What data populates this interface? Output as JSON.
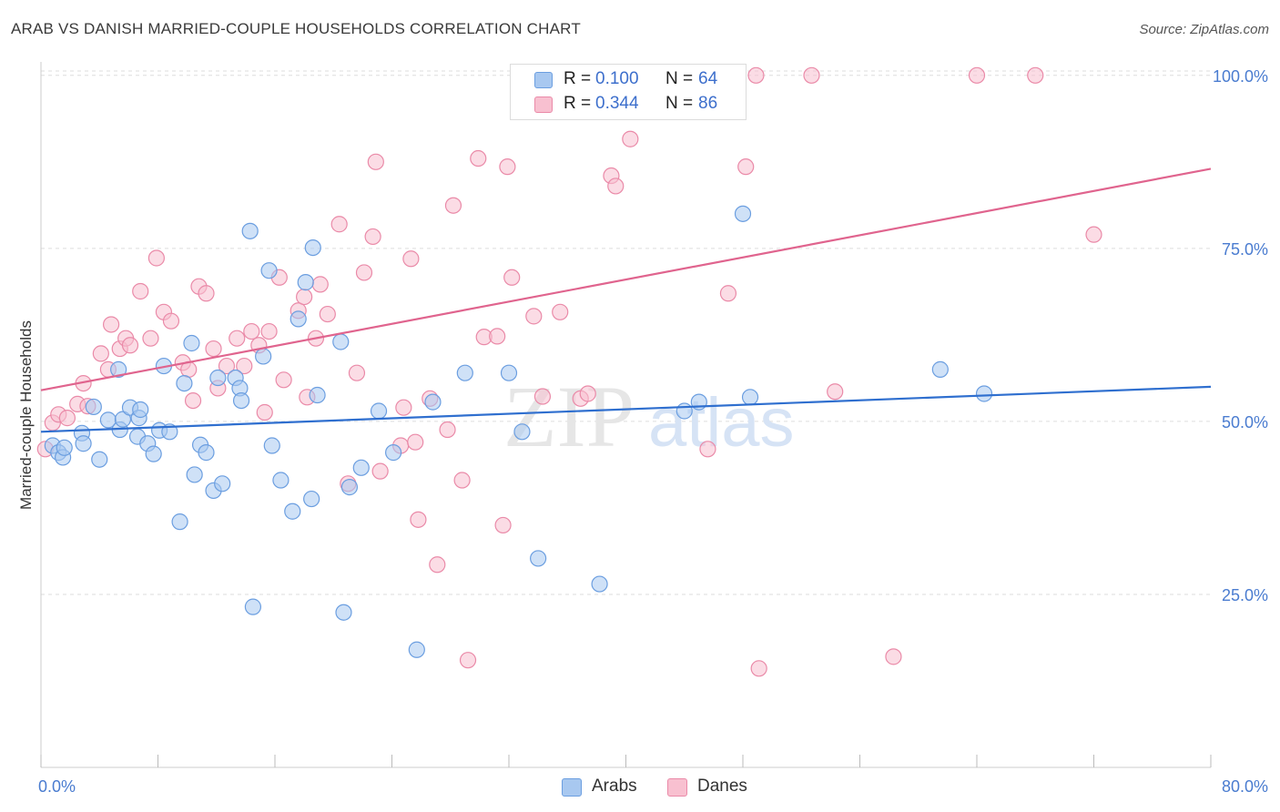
{
  "title": "ARAB VS DANISH MARRIED-COUPLE HOUSEHOLDS CORRELATION CHART",
  "source": "Source: ZipAtlas.com",
  "watermark": {
    "zip": "ZIP",
    "atlas": "atlas"
  },
  "legend_top": {
    "rows": [
      {
        "r_label": "R =",
        "r_value": "0.100",
        "n_label": "N =",
        "n_value": "64",
        "color": "#a8c8f0",
        "border": "#6b9ee0"
      },
      {
        "r_label": "R =",
        "r_value": "0.344",
        "n_label": "N =",
        "n_value": "86",
        "color": "#f8c0d0",
        "border": "#ea8aa8"
      }
    ]
  },
  "legend_bottom": {
    "items": [
      {
        "label": "Arabs",
        "color": "#a8c8f0",
        "border": "#6b9ee0"
      },
      {
        "label": "Danes",
        "color": "#f8c0d0",
        "border": "#ea8aa8"
      }
    ]
  },
  "chart_data": {
    "type": "scatter",
    "title": "ARAB VS DANISH MARRIED-COUPLE HOUSEHOLDS CORRELATION CHART",
    "xlabel": "",
    "ylabel": "Married-couple Households",
    "xlim": [
      0,
      80
    ],
    "ylim": [
      0,
      103
    ],
    "x_tick_labels": [
      "0.0%",
      "80.0%"
    ],
    "y_ticks": [
      25,
      50,
      75,
      100
    ],
    "y_tick_labels": [
      "25.0%",
      "50.0%",
      "75.0%",
      "100.0%"
    ],
    "grid": true,
    "legend_position": "top-center",
    "series": [
      {
        "name": "Arabs",
        "color": "#6b9ee0",
        "fill": "#a8c8f0",
        "trend_color": "#2f6fcf",
        "trend": {
          "x": [
            0,
            80
          ],
          "y": [
            48.5,
            55.0
          ]
        },
        "points": [
          [
            0.8,
            46.5
          ],
          [
            1.2,
            45.5
          ],
          [
            1.5,
            44.8
          ],
          [
            2.8,
            48.3
          ],
          [
            2.9,
            46.8
          ],
          [
            3.6,
            52.1
          ],
          [
            4.0,
            44.5
          ],
          [
            4.6,
            50.2
          ],
          [
            5.3,
            57.5
          ],
          [
            5.4,
            48.8
          ],
          [
            5.6,
            50.3
          ],
          [
            6.1,
            52.0
          ],
          [
            6.6,
            47.8
          ],
          [
            6.7,
            50.5
          ],
          [
            6.8,
            51.7
          ],
          [
            7.3,
            46.8
          ],
          [
            7.7,
            45.3
          ],
          [
            8.1,
            48.7
          ],
          [
            8.4,
            58.0
          ],
          [
            8.8,
            48.5
          ],
          [
            9.5,
            35.5
          ],
          [
            9.8,
            55.5
          ],
          [
            10.3,
            61.3
          ],
          [
            10.5,
            42.3
          ],
          [
            10.9,
            46.6
          ],
          [
            11.3,
            45.5
          ],
          [
            11.8,
            40.0
          ],
          [
            12.1,
            56.3
          ],
          [
            12.4,
            41.0
          ],
          [
            13.3,
            56.3
          ],
          [
            13.6,
            54.8
          ],
          [
            13.7,
            53.0
          ],
          [
            14.3,
            77.5
          ],
          [
            14.5,
            23.2
          ],
          [
            15.2,
            59.4
          ],
          [
            15.6,
            71.8
          ],
          [
            15.8,
            46.5
          ],
          [
            16.4,
            41.5
          ],
          [
            17.2,
            37.0
          ],
          [
            17.6,
            64.8
          ],
          [
            18.1,
            70.1
          ],
          [
            18.5,
            38.8
          ],
          [
            18.6,
            75.1
          ],
          [
            18.9,
            53.8
          ],
          [
            20.5,
            61.5
          ],
          [
            20.7,
            22.4
          ],
          [
            21.1,
            40.5
          ],
          [
            21.9,
            43.3
          ],
          [
            23.1,
            51.5
          ],
          [
            24.1,
            45.5
          ],
          [
            25.7,
            17.0
          ],
          [
            26.8,
            52.8
          ],
          [
            29.0,
            57.0
          ],
          [
            32.0,
            57.0
          ],
          [
            32.9,
            48.5
          ],
          [
            34.0,
            30.2
          ],
          [
            38.2,
            26.5
          ],
          [
            44.0,
            51.5
          ],
          [
            45.0,
            52.8
          ],
          [
            48.0,
            80.0
          ],
          [
            48.5,
            53.5
          ],
          [
            61.5,
            57.5
          ],
          [
            64.5,
            54.0
          ],
          [
            1.6,
            46.2
          ]
        ]
      },
      {
        "name": "Danes",
        "color": "#ea8aa8",
        "fill": "#f8c0d0",
        "trend_color": "#e0648e",
        "trend": {
          "x": [
            0,
            80
          ],
          "y": [
            54.5,
            86.5
          ]
        },
        "points": [
          [
            0.3,
            46.0
          ],
          [
            0.8,
            49.8
          ],
          [
            1.2,
            51.0
          ],
          [
            1.8,
            50.5
          ],
          [
            2.5,
            52.5
          ],
          [
            2.9,
            55.5
          ],
          [
            3.2,
            52.2
          ],
          [
            4.1,
            59.8
          ],
          [
            4.6,
            57.5
          ],
          [
            4.8,
            64.0
          ],
          [
            5.4,
            60.5
          ],
          [
            5.8,
            62.0
          ],
          [
            6.1,
            61.0
          ],
          [
            6.8,
            68.8
          ],
          [
            7.5,
            62.0
          ],
          [
            7.9,
            73.6
          ],
          [
            8.4,
            65.8
          ],
          [
            8.9,
            64.5
          ],
          [
            9.7,
            58.5
          ],
          [
            10.1,
            57.5
          ],
          [
            10.4,
            53.0
          ],
          [
            10.8,
            69.5
          ],
          [
            11.3,
            68.5
          ],
          [
            11.8,
            60.5
          ],
          [
            12.1,
            54.8
          ],
          [
            12.7,
            58.0
          ],
          [
            13.4,
            62.0
          ],
          [
            13.9,
            58.0
          ],
          [
            14.4,
            63.0
          ],
          [
            14.9,
            61.0
          ],
          [
            15.3,
            51.3
          ],
          [
            15.6,
            63.0
          ],
          [
            16.3,
            70.8
          ],
          [
            16.6,
            56.0
          ],
          [
            17.6,
            66.0
          ],
          [
            18.0,
            68.0
          ],
          [
            18.2,
            53.5
          ],
          [
            18.8,
            62.0
          ],
          [
            19.1,
            69.8
          ],
          [
            19.6,
            65.5
          ],
          [
            20.4,
            78.5
          ],
          [
            21.0,
            41.0
          ],
          [
            21.6,
            57.0
          ],
          [
            22.1,
            71.5
          ],
          [
            22.7,
            76.7
          ],
          [
            22.9,
            87.5
          ],
          [
            23.2,
            42.8
          ],
          [
            24.6,
            46.5
          ],
          [
            24.8,
            52.0
          ],
          [
            25.3,
            73.5
          ],
          [
            25.6,
            47.0
          ],
          [
            25.8,
            35.8
          ],
          [
            26.6,
            53.3
          ],
          [
            27.1,
            29.3
          ],
          [
            27.8,
            48.8
          ],
          [
            28.2,
            81.2
          ],
          [
            28.8,
            41.5
          ],
          [
            29.2,
            15.5
          ],
          [
            29.9,
            88.0
          ],
          [
            30.3,
            62.2
          ],
          [
            31.2,
            62.3
          ],
          [
            31.6,
            35.0
          ],
          [
            31.9,
            86.8
          ],
          [
            32.2,
            70.8
          ],
          [
            33.7,
            65.2
          ],
          [
            34.3,
            53.6
          ],
          [
            35.5,
            65.8
          ],
          [
            36.0,
            95.0
          ],
          [
            36.9,
            53.3
          ],
          [
            37.4,
            54.0
          ],
          [
            38.7,
            100.0
          ],
          [
            39.0,
            85.5
          ],
          [
            39.3,
            84.0
          ],
          [
            40.3,
            90.8
          ],
          [
            43.1,
            100.0
          ],
          [
            45.5,
            100.0
          ],
          [
            45.6,
            46.0
          ],
          [
            47.0,
            68.5
          ],
          [
            48.2,
            86.8
          ],
          [
            48.9,
            100.0
          ],
          [
            49.1,
            14.3
          ],
          [
            52.7,
            100.0
          ],
          [
            54.3,
            54.3
          ],
          [
            58.3,
            16.0
          ],
          [
            64.0,
            100.0
          ],
          [
            68.0,
            100.0
          ],
          [
            72.0,
            77.0
          ]
        ]
      }
    ]
  }
}
